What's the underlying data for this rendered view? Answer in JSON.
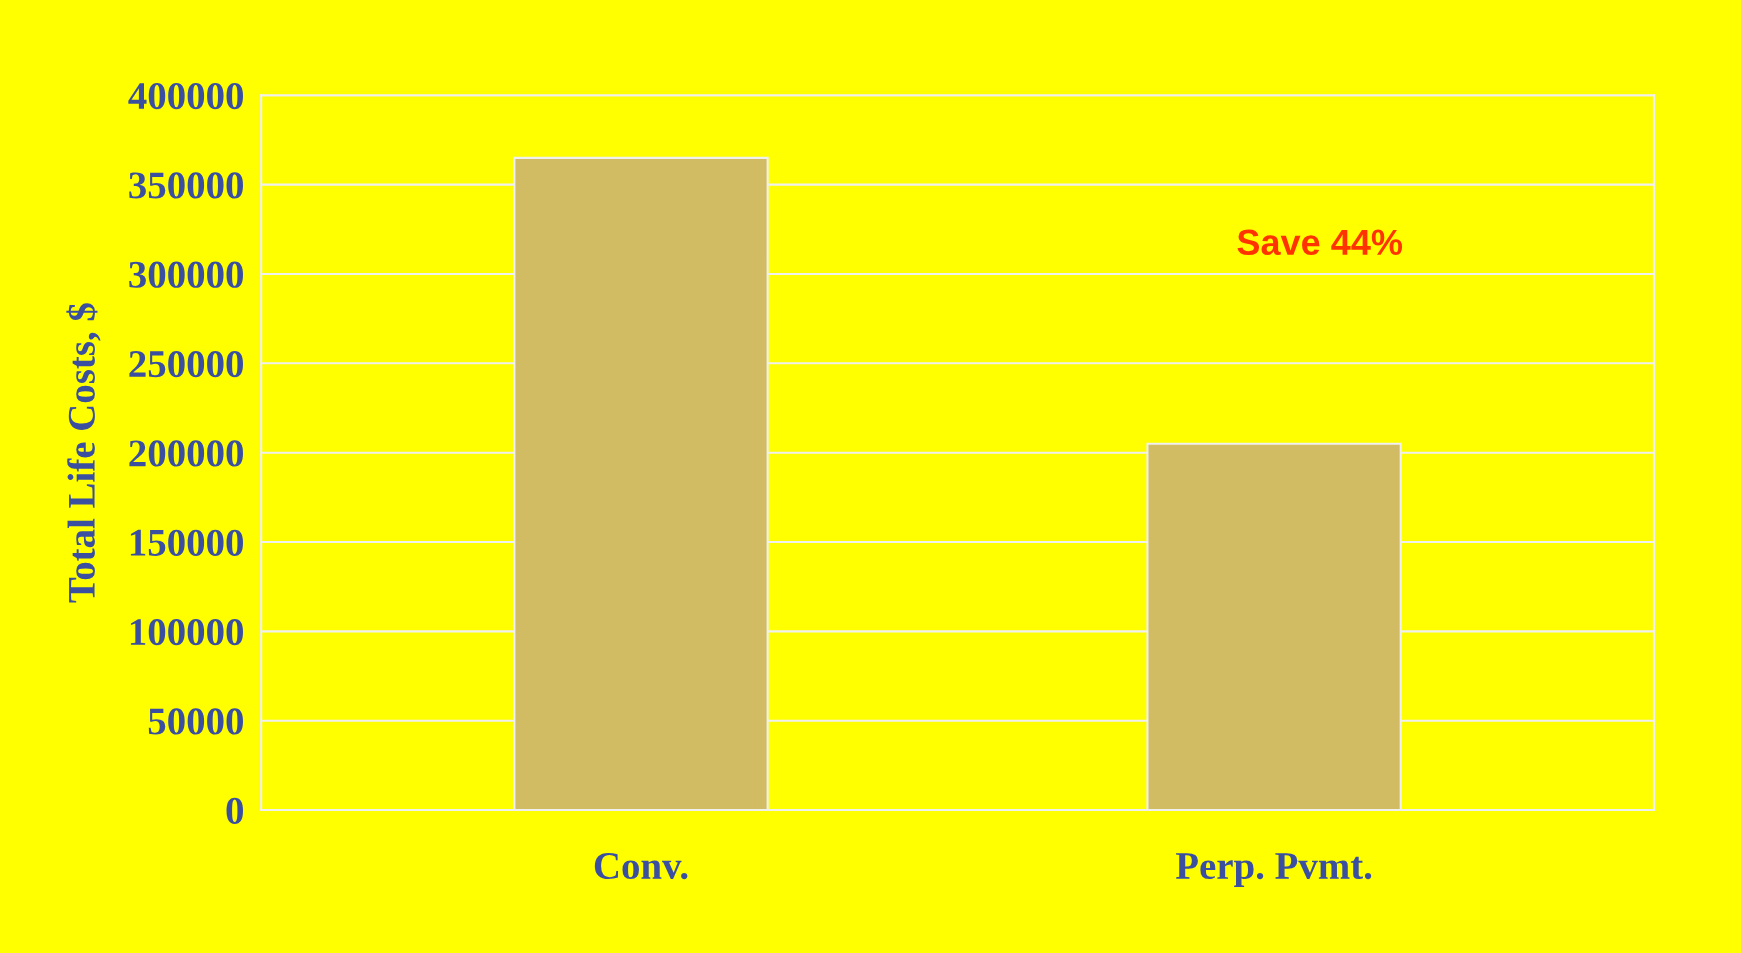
{
  "chart_data": {
    "type": "bar",
    "ylabel": "Total Life Costs, $",
    "categories": [
      "Conv.",
      "Perp. Pvmt."
    ],
    "values": [
      365000,
      205000
    ],
    "color": "#d1bb63",
    "ylim": [
      0,
      400000
    ],
    "yticks": [
      0,
      50000,
      100000,
      150000,
      200000,
      250000,
      300000,
      350000,
      400000
    ],
    "grid": "y",
    "annotations": [
      "Save 44%"
    ]
  }
}
